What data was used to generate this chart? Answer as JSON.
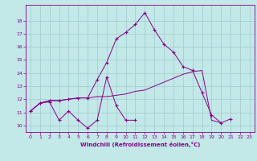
{
  "xlabel": "Windchill (Refroidissement éolien,°C)",
  "background_color": "#c2e8e8",
  "grid_color": "#a0cccc",
  "line_color": "#880088",
  "xlim": [
    -0.5,
    23.5
  ],
  "ylim": [
    9.5,
    19.2
  ],
  "xticks": [
    0,
    1,
    2,
    3,
    4,
    5,
    6,
    7,
    8,
    9,
    10,
    11,
    12,
    13,
    14,
    15,
    16,
    17,
    18,
    19,
    20,
    21,
    22,
    23
  ],
  "yticks": [
    10,
    11,
    12,
    13,
    14,
    15,
    16,
    17,
    18
  ],
  "hours": [
    0,
    1,
    2,
    3,
    4,
    5,
    6,
    7,
    8,
    9,
    10,
    11,
    12,
    13,
    14,
    15,
    16,
    17,
    18,
    19,
    20,
    21,
    22,
    23
  ],
  "line_spiky": [
    11.1,
    11.7,
    11.8,
    10.4,
    11.1,
    10.4,
    9.8,
    10.4,
    13.7,
    11.5,
    10.4,
    10.4,
    null,
    null,
    null,
    null,
    null,
    null,
    null,
    null,
    null,
    null,
    null,
    null
  ],
  "line_peak": [
    11.1,
    11.7,
    11.9,
    11.9,
    12.0,
    12.1,
    12.1,
    13.5,
    14.8,
    16.6,
    17.1,
    17.7,
    18.6,
    17.3,
    16.2,
    15.6,
    14.5,
    14.2,
    12.5,
    10.8,
    10.2,
    10.5,
    null,
    null
  ],
  "line_flat": [
    11.1,
    11.7,
    11.9,
    11.9,
    12.0,
    12.1,
    12.1,
    12.2,
    12.2,
    12.3,
    12.4,
    12.6,
    12.7,
    13.0,
    13.3,
    13.6,
    13.9,
    14.1,
    14.2,
    10.4,
    10.2,
    null,
    null,
    null
  ]
}
